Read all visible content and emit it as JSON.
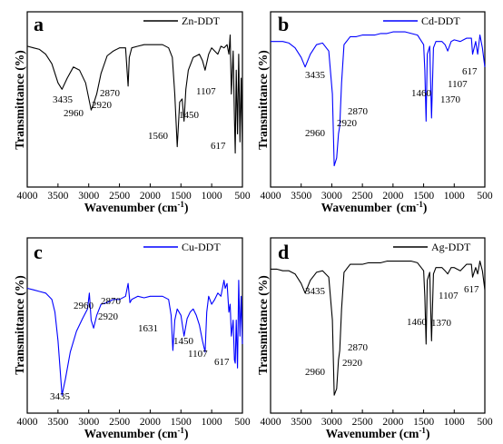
{
  "figure": {
    "panels": [
      {
        "letter": "a",
        "legend": "Zn-DDT",
        "xlabel": "Wavenumber (cm",
        "xlabel_sup": "-1",
        "xlabel_end": ")",
        "ylabel": "Transmittance (%)",
        "peak_labels": [
          {
            "text": "3435",
            "x": 3435
          },
          {
            "text": "2960",
            "x": 2960
          },
          {
            "text": "2870",
            "x": 2870
          },
          {
            "text": "2920",
            "x": 2920
          },
          {
            "text": "1560",
            "x": 1560
          },
          {
            "text": "1450",
            "x": 1450
          },
          {
            "text": "1107",
            "x": 1107
          },
          {
            "text": "617",
            "x": 617
          }
        ]
      },
      {
        "letter": "b",
        "legend": "Cd-DDT",
        "xlabel": "Wavenumber",
        "xlabel_sup": "-1",
        "xlabel_end": ")",
        "xlabel_mid": "(cm",
        "ylabel": "Transmittance (%)",
        "peak_labels": [
          {
            "text": "3435",
            "x": 3435
          },
          {
            "text": "2870",
            "x": 2870
          },
          {
            "text": "2960",
            "x": 2960
          },
          {
            "text": "2920",
            "x": 2920
          },
          {
            "text": "1460",
            "x": 1460
          },
          {
            "text": "1370",
            "x": 1370
          },
          {
            "text": "1107",
            "x": 1107
          },
          {
            "text": "617",
            "x": 617
          }
        ]
      },
      {
        "letter": "c",
        "legend": "Cu-DDT",
        "xlabel": "Wavenumber (cm",
        "xlabel_sup": "-1",
        "xlabel_end": ")",
        "ylabel": "Transmittance (%)",
        "peak_labels": [
          {
            "text": "2960",
            "x": 2960
          },
          {
            "text": "2870",
            "x": 2870
          },
          {
            "text": "2920",
            "x": 2920
          },
          {
            "text": "1631",
            "x": 1631
          },
          {
            "text": "1450",
            "x": 1450
          },
          {
            "text": "1107",
            "x": 1107
          },
          {
            "text": "617",
            "x": 617
          },
          {
            "text": "3435",
            "x": 3435
          }
        ]
      },
      {
        "letter": "d",
        "legend": "Ag-DDT",
        "xlabel": "Wavenumber (cm",
        "xlabel_sup": "-1",
        "xlabel_end": ")",
        "ylabel": "Transmittance (%)",
        "peak_labels": [
          {
            "text": "3435",
            "x": 3435
          },
          {
            "text": "2870",
            "x": 2870
          },
          {
            "text": "2960",
            "x": 2960
          },
          {
            "text": "2920",
            "x": 2920
          },
          {
            "text": "1460",
            "x": 1460
          },
          {
            "text": "1370",
            "x": 1370
          },
          {
            "text": "1107",
            "x": 1107
          },
          {
            "text": "617",
            "x": 617
          }
        ]
      }
    ]
  },
  "chart_data": [
    {
      "type": "line",
      "panel": "a",
      "xlabel": "Wavenumber (cm-1)",
      "ylabel": "Transmittance (%)",
      "xlim": [
        4000,
        500
      ],
      "x_reversed": true,
      "xticks": [
        4000,
        3500,
        3000,
        2500,
        2000,
        1500,
        1000,
        500
      ],
      "y_ticks_shown": false,
      "grid": false,
      "legend_position": "top-right",
      "series": [
        {
          "name": "Zn-DDT",
          "color": "#000000",
          "x": [
            4000,
            3900,
            3800,
            3700,
            3600,
            3500,
            3435,
            3350,
            3250,
            3150,
            3050,
            2960,
            2920,
            2870,
            2800,
            2700,
            2600,
            2500,
            2400,
            2360,
            2340,
            2300,
            2200,
            2100,
            2000,
            1900,
            1800,
            1700,
            1640,
            1600,
            1560,
            1520,
            1480,
            1450,
            1420,
            1380,
            1300,
            1200,
            1150,
            1107,
            1050,
            1000,
            950,
            900,
            850,
            800,
            750,
            720,
            700,
            680,
            650,
            630,
            617,
            600,
            580,
            560,
            540,
            520,
            500
          ],
          "y": [
            0.85,
            0.84,
            0.83,
            0.8,
            0.74,
            0.62,
            0.58,
            0.65,
            0.72,
            0.7,
            0.62,
            0.45,
            0.49,
            0.55,
            0.68,
            0.79,
            0.82,
            0.84,
            0.84,
            0.6,
            0.78,
            0.84,
            0.85,
            0.86,
            0.86,
            0.86,
            0.86,
            0.84,
            0.78,
            0.55,
            0.22,
            0.5,
            0.52,
            0.38,
            0.58,
            0.7,
            0.78,
            0.8,
            0.76,
            0.7,
            0.8,
            0.84,
            0.82,
            0.8,
            0.85,
            0.84,
            0.86,
            0.8,
            0.92,
            0.55,
            0.82,
            0.4,
            0.18,
            0.7,
            0.3,
            0.8,
            0.25,
            0.65,
            0.2
          ]
        }
      ]
    },
    {
      "type": "line",
      "panel": "b",
      "xlabel": "Wavenumber (cm-1)",
      "ylabel": "Transmittance (%)",
      "xlim": [
        4000,
        500
      ],
      "x_reversed": true,
      "xticks": [
        4000,
        3500,
        3000,
        2500,
        2000,
        1500,
        1000,
        500
      ],
      "y_ticks_shown": false,
      "grid": false,
      "legend_position": "top-right",
      "series": [
        {
          "name": "Cd-DDT",
          "color": "#0000ff",
          "x": [
            4000,
            3900,
            3800,
            3700,
            3600,
            3500,
            3435,
            3350,
            3250,
            3150,
            3050,
            2990,
            2960,
            2920,
            2890,
            2870,
            2840,
            2800,
            2700,
            2600,
            2500,
            2400,
            2300,
            2200,
            2100,
            2000,
            1900,
            1800,
            1700,
            1600,
            1500,
            1480,
            1460,
            1440,
            1400,
            1370,
            1340,
            1300,
            1200,
            1150,
            1107,
            1050,
            1000,
            900,
            800,
            720,
            700,
            650,
            617,
            580,
            540,
            500
          ],
          "y": [
            0.88,
            0.88,
            0.88,
            0.87,
            0.84,
            0.78,
            0.72,
            0.8,
            0.86,
            0.87,
            0.82,
            0.55,
            0.1,
            0.15,
            0.3,
            0.35,
            0.62,
            0.86,
            0.91,
            0.91,
            0.92,
            0.92,
            0.92,
            0.93,
            0.93,
            0.94,
            0.94,
            0.94,
            0.93,
            0.92,
            0.86,
            0.7,
            0.38,
            0.8,
            0.85,
            0.4,
            0.84,
            0.88,
            0.88,
            0.86,
            0.82,
            0.88,
            0.89,
            0.88,
            0.9,
            0.9,
            0.8,
            0.88,
            0.8,
            0.92,
            0.84,
            0.72
          ]
        }
      ]
    },
    {
      "type": "line",
      "panel": "c",
      "xlabel": "Wavenumber (cm-1)",
      "ylabel": "Transmittance (%)",
      "xlim": [
        4000,
        500
      ],
      "x_reversed": true,
      "xticks": [
        4000,
        3500,
        3000,
        2500,
        2000,
        1500,
        1000,
        500
      ],
      "y_ticks_shown": false,
      "grid": false,
      "legend_position": "top-right",
      "series": [
        {
          "name": "Cu-DDT",
          "color": "#0000ff",
          "x": [
            4000,
            3900,
            3800,
            3700,
            3600,
            3550,
            3500,
            3435,
            3380,
            3300,
            3200,
            3100,
            3020,
            2990,
            2960,
            2920,
            2870,
            2800,
            2700,
            2600,
            2500,
            2400,
            2360,
            2330,
            2300,
            2200,
            2100,
            2000,
            1900,
            1800,
            1700,
            1660,
            1631,
            1600,
            1560,
            1500,
            1450,
            1400,
            1350,
            1300,
            1250,
            1200,
            1150,
            1107,
            1080,
            1050,
            1000,
            950,
            900,
            850,
            800,
            780,
            750,
            720,
            700,
            680,
            650,
            630,
            617,
            600,
            580,
            560,
            540,
            520,
            500
          ],
          "y": [
            0.75,
            0.74,
            0.73,
            0.72,
            0.68,
            0.6,
            0.42,
            0.08,
            0.18,
            0.35,
            0.48,
            0.56,
            0.62,
            0.72,
            0.55,
            0.5,
            0.58,
            0.65,
            0.66,
            0.68,
            0.68,
            0.7,
            0.78,
            0.66,
            0.68,
            0.7,
            0.69,
            0.7,
            0.7,
            0.7,
            0.68,
            0.58,
            0.36,
            0.55,
            0.62,
            0.58,
            0.45,
            0.56,
            0.6,
            0.62,
            0.58,
            0.52,
            0.42,
            0.35,
            0.6,
            0.7,
            0.65,
            0.68,
            0.72,
            0.7,
            0.8,
            0.75,
            0.78,
            0.6,
            0.65,
            0.45,
            0.55,
            0.3,
            0.28,
            0.55,
            0.25,
            0.8,
            0.45,
            0.7,
            0.4
          ]
        }
      ]
    },
    {
      "type": "line",
      "panel": "d",
      "xlabel": "Wavenumber (cm-1)",
      "ylabel": "Transmittance (%)",
      "xlim": [
        4000,
        500
      ],
      "x_reversed": true,
      "xticks": [
        4000,
        3500,
        3000,
        2500,
        2000,
        1500,
        1000,
        500
      ],
      "y_ticks_shown": false,
      "grid": false,
      "legend_position": "top-right",
      "series": [
        {
          "name": "Ag-DDT",
          "color": "#000000",
          "x": [
            4000,
            3900,
            3800,
            3700,
            3600,
            3500,
            3435,
            3350,
            3250,
            3150,
            3050,
            2990,
            2960,
            2920,
            2890,
            2870,
            2840,
            2800,
            2700,
            2600,
            2500,
            2400,
            2300,
            2200,
            2100,
            2000,
            1900,
            1800,
            1700,
            1600,
            1500,
            1480,
            1460,
            1440,
            1400,
            1370,
            1340,
            1300,
            1200,
            1150,
            1107,
            1050,
            1000,
            900,
            800,
            720,
            700,
            650,
            617,
            580,
            540,
            500
          ],
          "y": [
            0.87,
            0.87,
            0.86,
            0.86,
            0.84,
            0.78,
            0.72,
            0.8,
            0.85,
            0.86,
            0.82,
            0.55,
            0.08,
            0.12,
            0.3,
            0.36,
            0.62,
            0.85,
            0.9,
            0.9,
            0.9,
            0.91,
            0.91,
            0.91,
            0.92,
            0.92,
            0.92,
            0.92,
            0.92,
            0.91,
            0.86,
            0.7,
            0.4,
            0.8,
            0.85,
            0.42,
            0.84,
            0.88,
            0.88,
            0.86,
            0.84,
            0.88,
            0.88,
            0.86,
            0.9,
            0.9,
            0.82,
            0.88,
            0.84,
            0.92,
            0.86,
            0.74
          ]
        }
      ]
    }
  ]
}
